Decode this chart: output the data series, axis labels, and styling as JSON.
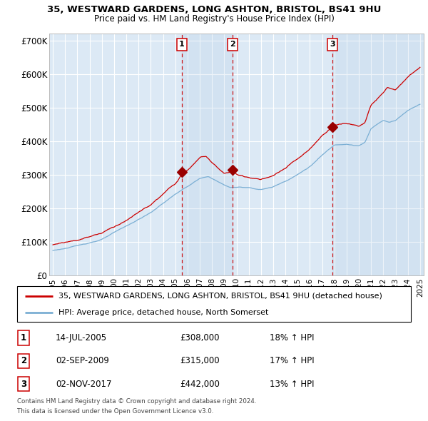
{
  "title1": "35, WESTWARD GARDENS, LONG ASHTON, BRISTOL, BS41 9HU",
  "title2": "Price paid vs. HM Land Registry's House Price Index (HPI)",
  "ylim": [
    0,
    720000
  ],
  "yticks": [
    0,
    100000,
    200000,
    300000,
    400000,
    500000,
    600000,
    700000
  ],
  "ytick_labels": [
    "£0",
    "£100K",
    "£200K",
    "£300K",
    "£400K",
    "£500K",
    "£600K",
    "£700K"
  ],
  "background_color": "#ffffff",
  "plot_bg_color": "#dce9f5",
  "grid_color": "#ffffff",
  "sale_dates": [
    2005.54,
    2009.67,
    2017.84
  ],
  "sale_prices": [
    308000,
    315000,
    442000
  ],
  "sale_labels": [
    "1",
    "2",
    "3"
  ],
  "legend_house": "35, WESTWARD GARDENS, LONG ASHTON, BRISTOL, BS41 9HU (detached house)",
  "legend_hpi": "HPI: Average price, detached house, North Somerset",
  "table_rows": [
    [
      "1",
      "14-JUL-2005",
      "£308,000",
      "18% ↑ HPI"
    ],
    [
      "2",
      "02-SEP-2009",
      "£315,000",
      "17% ↑ HPI"
    ],
    [
      "3",
      "02-NOV-2017",
      "£442,000",
      "13% ↑ HPI"
    ]
  ],
  "footnote1": "Contains HM Land Registry data © Crown copyright and database right 2024.",
  "footnote2": "This data is licensed under the Open Government Licence v3.0.",
  "house_line_color": "#cc0000",
  "hpi_line_color": "#7bafd4",
  "vline_color": "#cc0000",
  "shade_color": "#c8dcf0"
}
